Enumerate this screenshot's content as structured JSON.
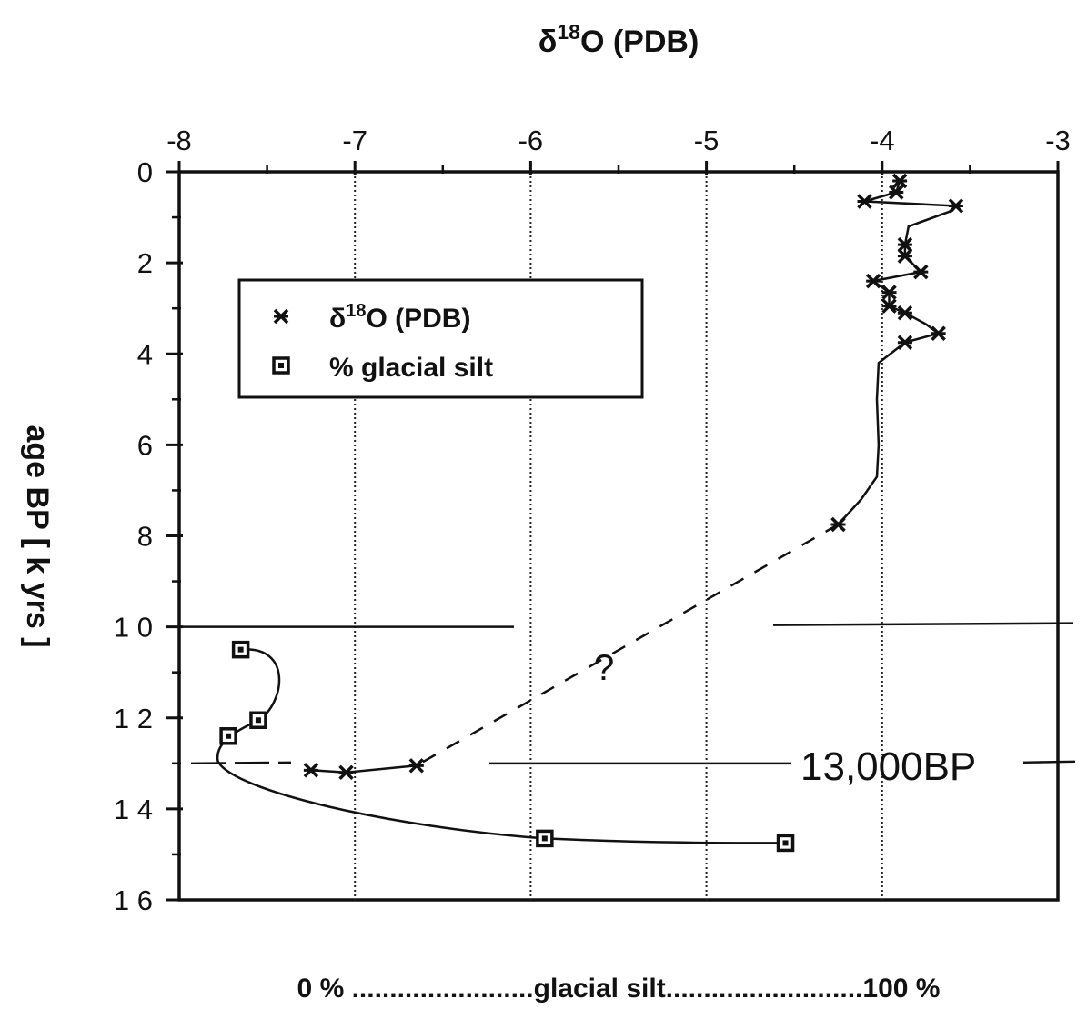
{
  "chart_data": {
    "type": "scatter",
    "title": "δ18O (PDB)",
    "x_label": "δ18O (PDB)",
    "y_label": "age BP [ k yrs ]",
    "x_ticks": [
      "-8",
      "-7",
      "-6",
      "-5",
      "-4",
      "-3"
    ],
    "y_ticks": [
      "0",
      "2",
      "4",
      "6",
      "8",
      "1 0",
      "1 2",
      "1 4",
      "1 6"
    ],
    "x_range": [
      -8,
      -3
    ],
    "y_range": [
      0,
      16
    ],
    "secondary_x_label": "0 % ........................glacial silt..........................100 %",
    "grid": "vertical dotted lines at -7, -6, -5, -4",
    "legend_position": "upper-left",
    "legend": [
      {
        "label_base": "δ",
        "label_sup": "18",
        "label_rest": "O (PDB)",
        "marker": "asterisk"
      },
      {
        "label": "% glacial silt",
        "marker": "square"
      }
    ],
    "series": [
      {
        "name": "δ18O (PDB)",
        "marker": "asterisk",
        "points": [
          {
            "x": -3.9,
            "y": 0.2
          },
          {
            "x": -3.92,
            "y": 0.45
          },
          {
            "x": -4.1,
            "y": 0.65
          },
          {
            "x": -3.58,
            "y": 0.75
          },
          {
            "x": -3.87,
            "y": 1.6
          },
          {
            "x": -3.87,
            "y": 1.85
          },
          {
            "x": -3.78,
            "y": 2.2
          },
          {
            "x": -4.05,
            "y": 2.4
          },
          {
            "x": -3.96,
            "y": 2.65
          },
          {
            "x": -3.96,
            "y": 2.95
          },
          {
            "x": -3.87,
            "y": 3.1
          },
          {
            "x": -3.68,
            "y": 3.55
          },
          {
            "x": -3.87,
            "y": 3.75
          },
          {
            "x": -4.25,
            "y": 7.75
          },
          {
            "x": -6.65,
            "y": 13.05
          },
          {
            "x": -7.05,
            "y": 13.2
          },
          {
            "x": -7.25,
            "y": 13.15
          }
        ]
      },
      {
        "name": "% glacial silt",
        "marker": "square",
        "points": [
          {
            "x": -7.65,
            "y": 10.5
          },
          {
            "x": -7.55,
            "y": 12.05
          },
          {
            "x": -7.72,
            "y": 12.4
          },
          {
            "x": -5.92,
            "y": 14.65
          },
          {
            "x": -4.55,
            "y": 14.75
          }
        ]
      }
    ],
    "annotations": {
      "boundary_label": "13,000BP",
      "question_mark": "?"
    }
  }
}
